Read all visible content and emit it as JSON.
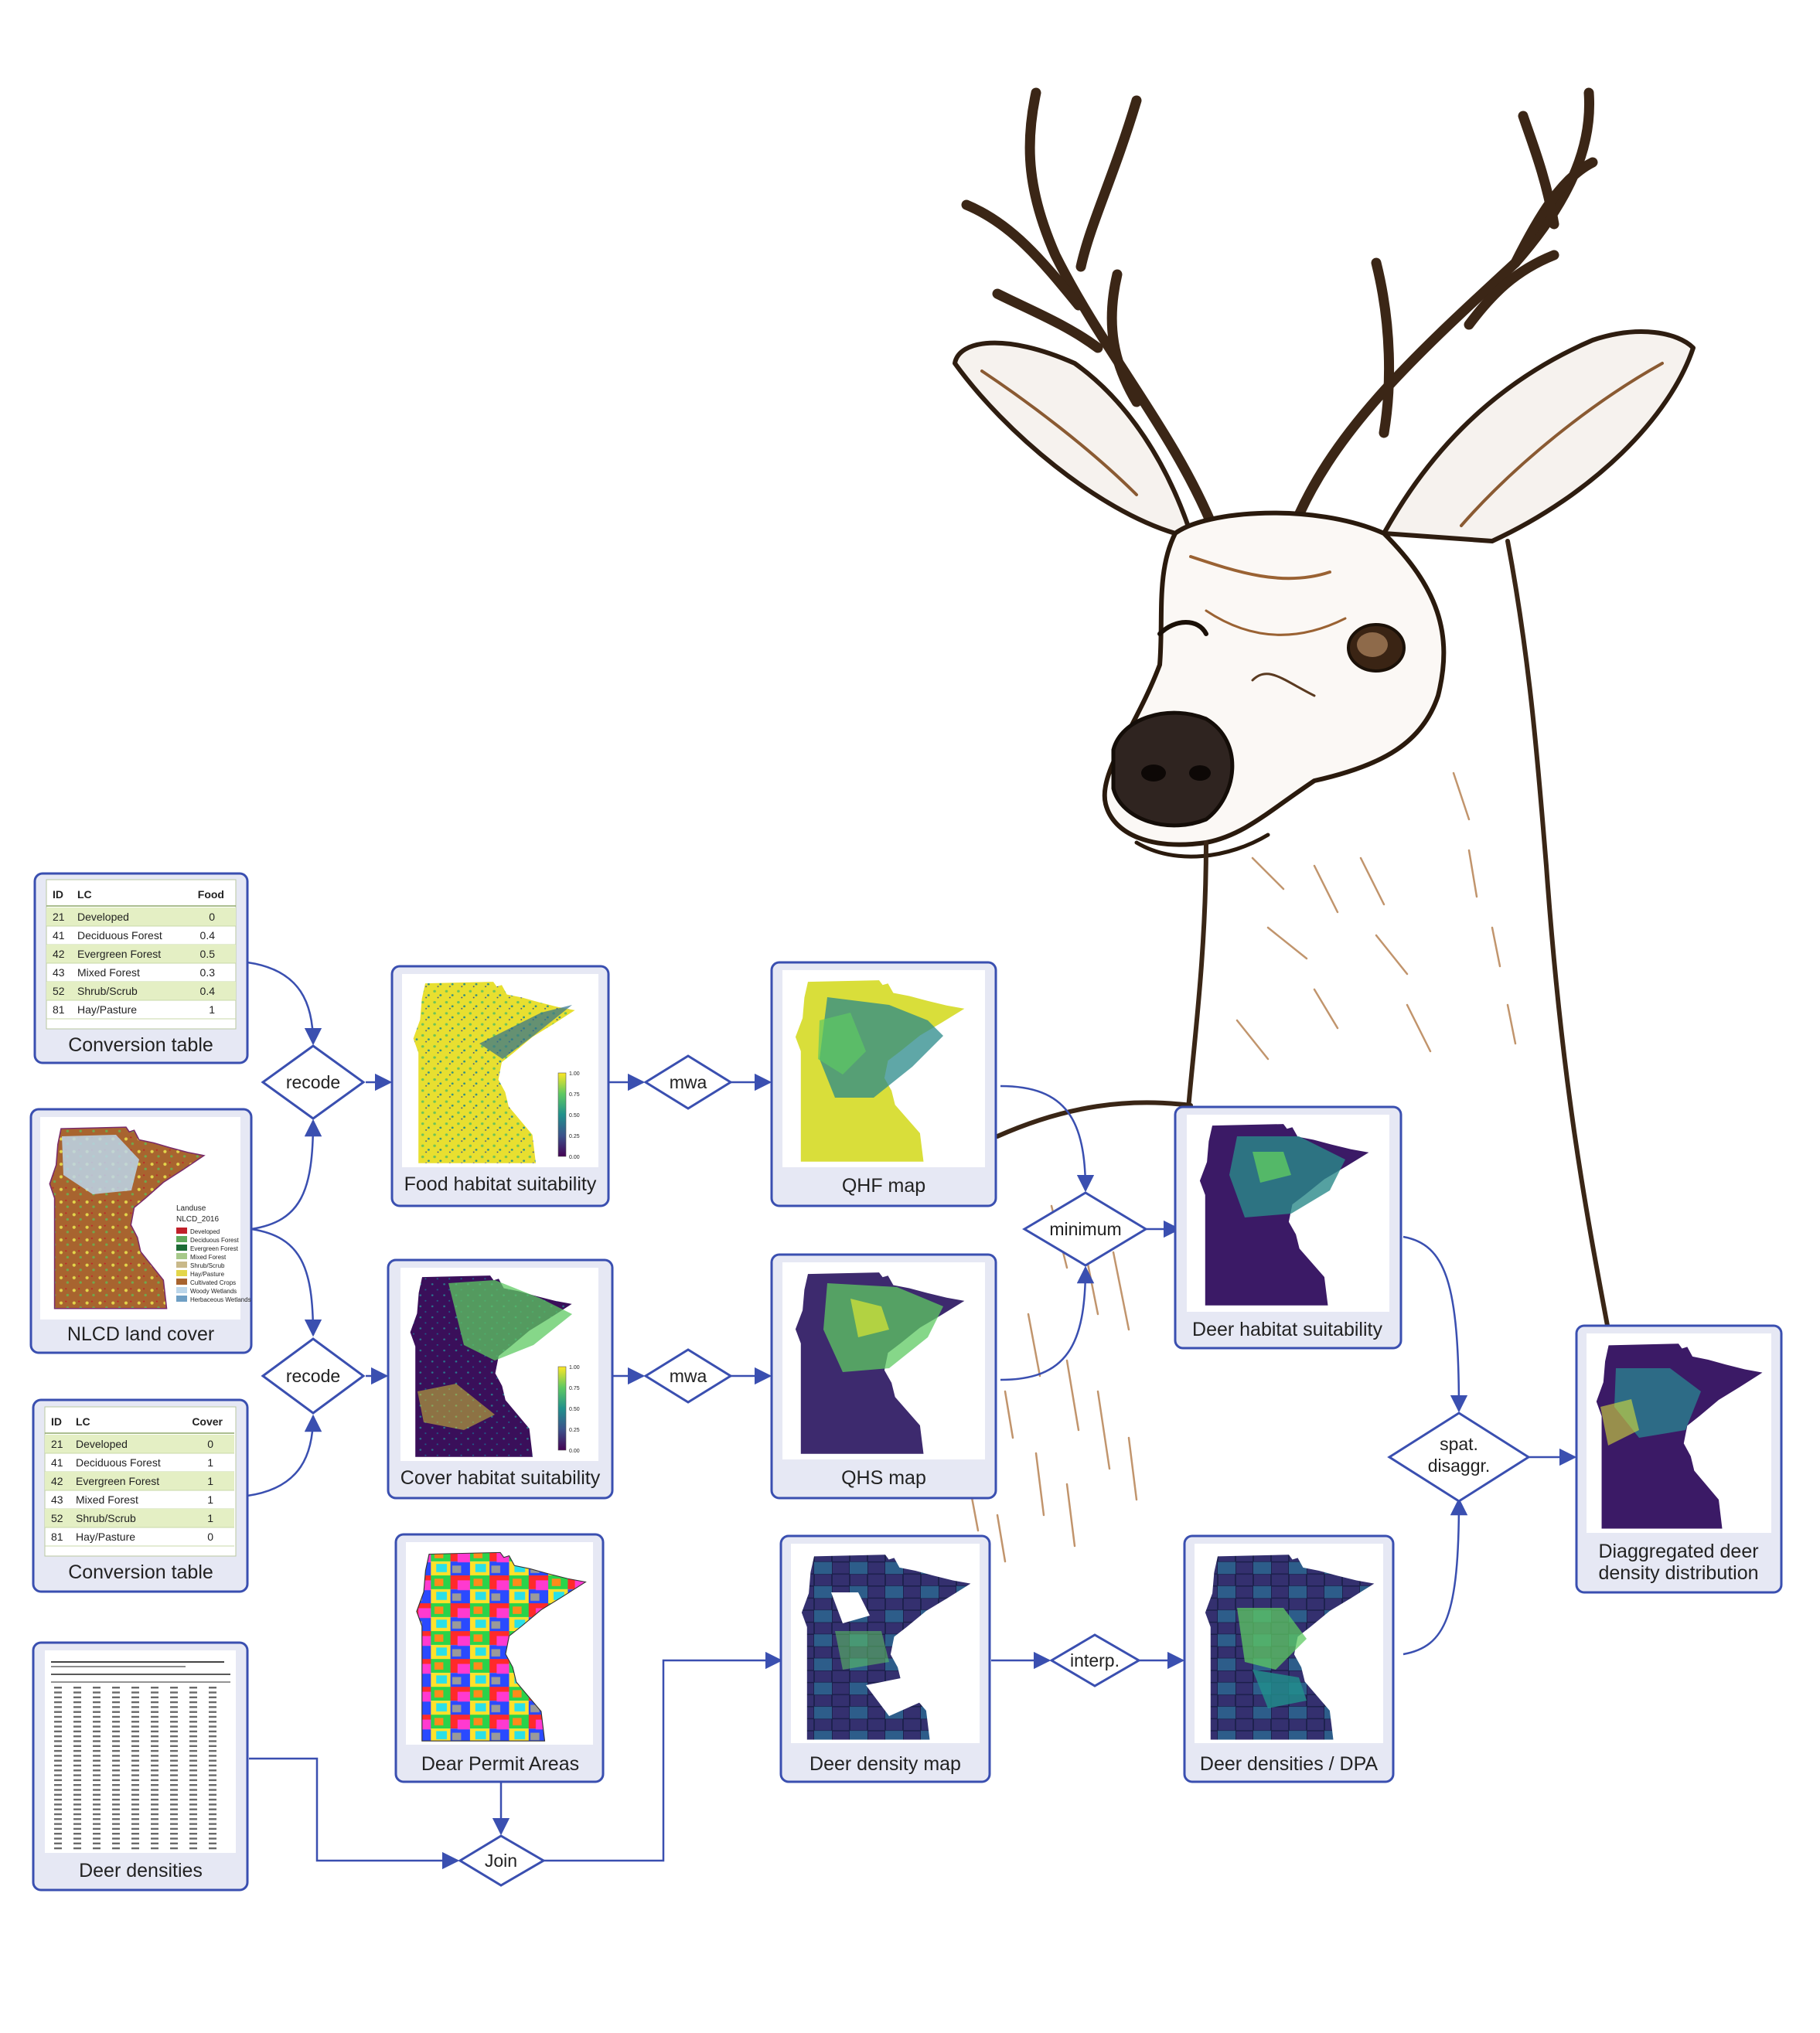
{
  "tables": {
    "food": {
      "columns": [
        "ID",
        "LC",
        "Food"
      ],
      "rows": [
        [
          "21",
          "Developed",
          "0"
        ],
        [
          "41",
          "Deciduous Forest",
          "0.4"
        ],
        [
          "42",
          "Evergreen Forest",
          "0.5"
        ],
        [
          "43",
          "Mixed Forest",
          "0.3"
        ],
        [
          "52",
          "Shrub/Scrub",
          "0.4"
        ],
        [
          "81",
          "Hay/Pasture",
          "1"
        ]
      ],
      "caption": "Conversion table"
    },
    "cover": {
      "columns": [
        "ID",
        "LC",
        "Cover"
      ],
      "rows": [
        [
          "21",
          "Developed",
          "0"
        ],
        [
          "41",
          "Deciduous Forest",
          "1"
        ],
        [
          "42",
          "Evergreen Forest",
          "1"
        ],
        [
          "43",
          "Mixed Forest",
          "1"
        ],
        [
          "52",
          "Shrub/Scrub",
          "1"
        ],
        [
          "81",
          "Hay/Pasture",
          "0"
        ]
      ],
      "caption": "Conversion table"
    }
  },
  "nlcd": {
    "caption": "NLCD land cover",
    "legend_title": "Landuse",
    "legend_subtitle": "NLCD_2016",
    "legend": [
      {
        "label": "Developed",
        "color": "#c0202a"
      },
      {
        "label": "Deciduous Forest",
        "color": "#5fa85a"
      },
      {
        "label": "Evergreen Forest",
        "color": "#1d6b35"
      },
      {
        "label": "Mixed Forest",
        "color": "#a7c98a"
      },
      {
        "label": "Shrub/Scrub",
        "color": "#c9b98a"
      },
      {
        "label": "Hay/Pasture",
        "color": "#e3d64a"
      },
      {
        "label": "Cultivated Crops",
        "color": "#a8642f"
      },
      {
        "label": "Woody Wetlands",
        "color": "#bcd6ea"
      },
      {
        "label": "Herbaceous Wetlands",
        "color": "#6f9fc4"
      }
    ]
  },
  "nodes": {
    "food_suit": "Food habitat suitability",
    "cover_suit": "Cover habitat suitability",
    "qhf": "QHF map",
    "qhs": "QHS map",
    "deer_suit": "Deer habitat suitability",
    "dpa": "Dear Permit Areas",
    "density_map": "Deer density map",
    "densities_dpa": "Deer densities / DPA",
    "deer_densities": "Deer densities",
    "disagg_line1": "Diaggregated deer",
    "disagg_line2": "density distribution"
  },
  "operations": {
    "recode_top": "recode",
    "recode_bottom": "recode",
    "mwa_top": "mwa",
    "mwa_bottom": "mwa",
    "minimum": "minimum",
    "spat_line1": "spat.",
    "spat_line2": "disaggr.",
    "interp": "interp.",
    "join": "Join"
  },
  "colorbar_ticks": [
    "1.00",
    "0.75",
    "0.50",
    "0.25",
    "0.00"
  ],
  "colors": {
    "accent": "#3a4fb0",
    "box_fill": "#e6e8f4",
    "table_highlight": "#e4efc4",
    "viridis_dark": "#440154",
    "viridis_mid": "#21918c",
    "viridis_light": "#fde725"
  }
}
